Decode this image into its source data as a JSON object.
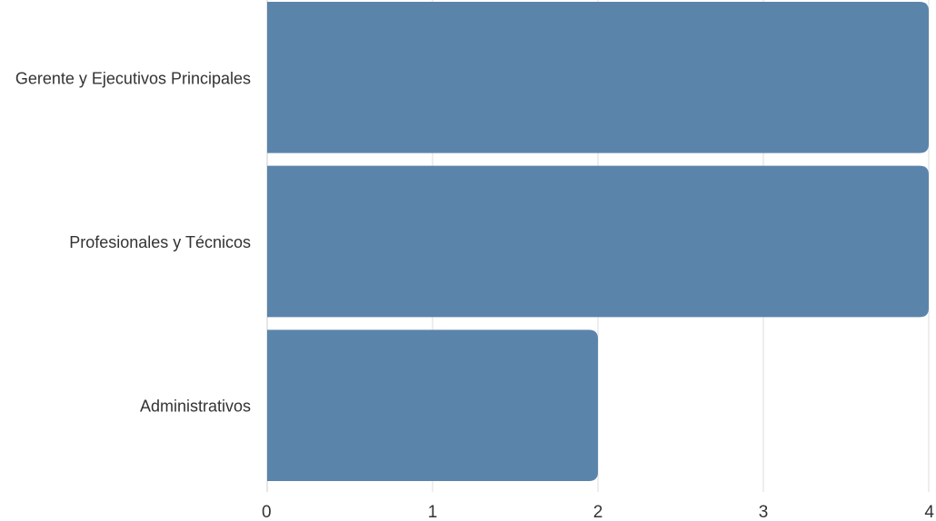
{
  "chart_data": {
    "type": "bar",
    "orientation": "horizontal",
    "categories": [
      "Gerente y Ejecutivos Principales",
      "Profesionales y Técnicos",
      "Administrativos"
    ],
    "values": [
      4,
      4,
      2
    ],
    "xlim": [
      0,
      4
    ],
    "x_ticks": [
      "0",
      "1",
      "2",
      "3",
      "4"
    ],
    "grid": true,
    "legend": "none",
    "bar_color": "#5b84ab"
  }
}
